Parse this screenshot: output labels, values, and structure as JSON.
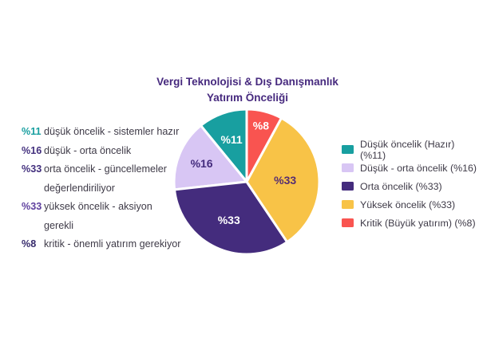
{
  "title": {
    "line1": "Vergi Teknolojisi & Dış Danışmanlık",
    "line2": "Yatırım Önceliği"
  },
  "annotations": [
    {
      "pct": "%11",
      "pct_color": "#189FA0",
      "lines": [
        "düşük öncelik - sistemler hazır"
      ]
    },
    {
      "pct": "%16",
      "pct_color": "#43307E",
      "lines": [
        "düşük - orta öncelik"
      ]
    },
    {
      "pct": "%33",
      "pct_color": "#43307E",
      "lines": [
        "orta öncelik - güncellemeler",
        "değerlendiriliyor"
      ]
    },
    {
      "pct": "%33",
      "pct_color": "#5E3F9E",
      "lines": [
        "yüksek öncelik - aksiyon gerekli"
      ]
    },
    {
      "pct": "%8",
      "pct_color": "#362A6B",
      "lines": [
        "kritik - önemli yatırım gerekiyor"
      ]
    }
  ],
  "legend": {
    "items": [
      {
        "label": "Düşük öncelik (Hazır) (%11)",
        "color": "#189FA0"
      },
      {
        "label": "Düşük - orta öncelik (%16)",
        "color": "#D8C6F4"
      },
      {
        "label": "Orta öncelik (%33)",
        "color": "#442C7D"
      },
      {
        "label": "Yüksek öncelik (%33)",
        "color": "#F8C347"
      },
      {
        "label": "Kritik (Büyük yatırım) (%8)",
        "color": "#F95450"
      }
    ]
  },
  "chart_data": {
    "type": "pie",
    "title": "Vergi Teknolojisi & Dış Danışmanlık Yatırım Önceliği",
    "direction": "counterclockwise",
    "rotation_deg": 0,
    "legend_position": "right",
    "slices": [
      {
        "label": "Düşük öncelik (Hazır)",
        "pct": 11,
        "color": "#189FA0",
        "slice_label": "%11",
        "slice_label_color": "#FFFFFF",
        "label_r": 0.62
      },
      {
        "label": "Düşük - orta öncelik",
        "pct": 16,
        "color": "#D8C6F4",
        "slice_label": "%16",
        "slice_label_color": "#442C7D",
        "label_r": 0.67
      },
      {
        "label": "Orta öncelik",
        "pct": 33,
        "color": "#442C7D",
        "slice_label": "%33",
        "slice_label_color": "#FFFFFF",
        "label_r": 0.58
      },
      {
        "label": "Yüksek öncelik",
        "pct": 33,
        "color": "#F8C347",
        "slice_label": "%33",
        "slice_label_color": "#562D72",
        "label_r": 0.53
      },
      {
        "label": "Kritik (Büyük yatırım)",
        "pct": 8,
        "color": "#F95450",
        "slice_label": "%8",
        "slice_label_color": "#FFFFFF",
        "label_r": 0.8
      }
    ]
  }
}
